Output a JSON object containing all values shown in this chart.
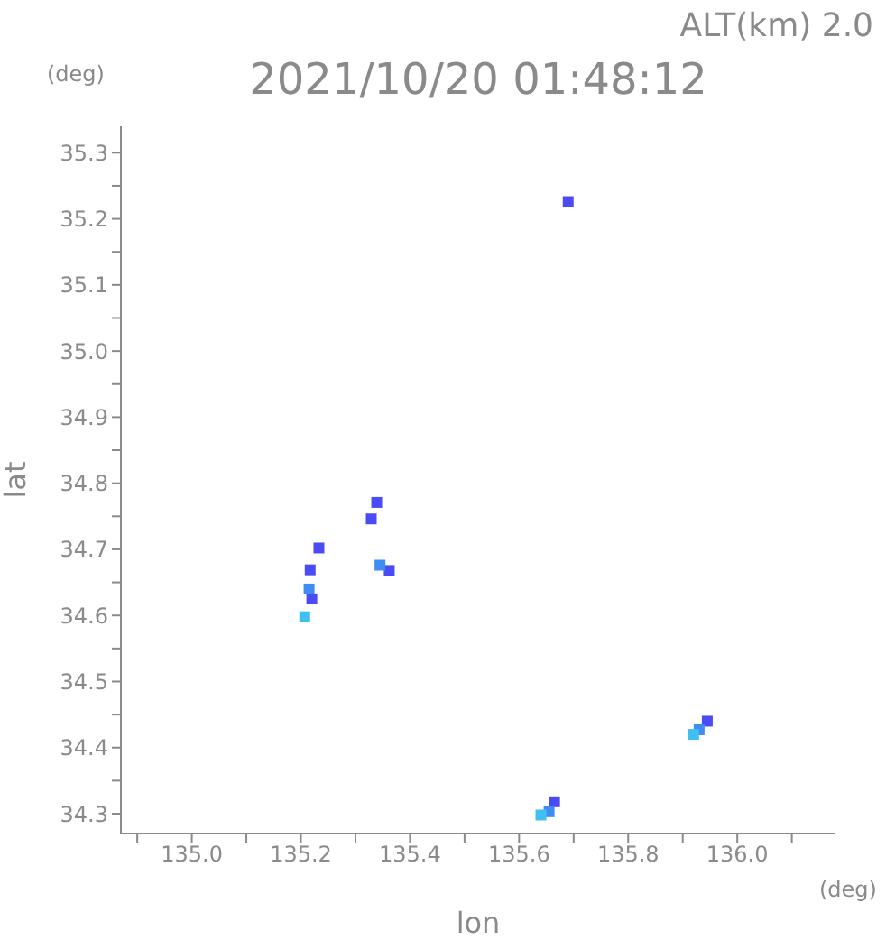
{
  "chart_data": {
    "type": "scatter",
    "title": "2021/10/20 01:48:12",
    "subtitle": "ALT(km) 2.0",
    "xlabel": "lon",
    "ylabel": "lat",
    "annotations": [
      "(deg)",
      "(deg)"
    ],
    "xlim": [
      134.87,
      136.18
    ],
    "xticks": [
      {
        "value": 134.9,
        "label": null
      },
      {
        "value": 135.0,
        "label": "135.0"
      },
      {
        "value": 135.1,
        "label": null
      },
      {
        "value": 135.2,
        "label": "135.2"
      },
      {
        "value": 135.3,
        "label": null
      },
      {
        "value": 135.4,
        "label": "135.4"
      },
      {
        "value": 135.5,
        "label": null
      },
      {
        "value": 135.6,
        "label": "135.6"
      },
      {
        "value": 135.7,
        "label": null
      },
      {
        "value": 135.8,
        "label": "135.8"
      },
      {
        "value": 135.9,
        "label": null
      },
      {
        "value": 136.0,
        "label": "136.0"
      },
      {
        "value": 136.1,
        "label": null
      }
    ],
    "ylim": [
      34.27,
      35.34
    ],
    "yticks": [
      {
        "value": 34.3,
        "label": "34.3"
      },
      {
        "value": 34.35,
        "label": null
      },
      {
        "value": 34.4,
        "label": "34.4"
      },
      {
        "value": 34.45,
        "label": null
      },
      {
        "value": 34.5,
        "label": "34.5"
      },
      {
        "value": 34.55,
        "label": null
      },
      {
        "value": 34.6,
        "label": "34.6"
      },
      {
        "value": 34.65,
        "label": null
      },
      {
        "value": 34.7,
        "label": "34.7"
      },
      {
        "value": 34.75,
        "label": null
      },
      {
        "value": 34.8,
        "label": "34.8"
      },
      {
        "value": 34.85,
        "label": null
      },
      {
        "value": 34.9,
        "label": "34.9"
      },
      {
        "value": 34.95,
        "label": null
      },
      {
        "value": 35.0,
        "label": "35.0"
      },
      {
        "value": 35.05,
        "label": null
      },
      {
        "value": 35.1,
        "label": "35.1"
      },
      {
        "value": 35.15,
        "label": null
      },
      {
        "value": 35.2,
        "label": "35.2"
      },
      {
        "value": 35.25,
        "label": null
      },
      {
        "value": 35.3,
        "label": "35.3"
      }
    ],
    "grid": false,
    "legend": false,
    "marker": "square",
    "series": [
      {
        "color": "#4b4bf5",
        "x": [
          135.69,
          135.362,
          135.217,
          135.22,
          135.233,
          135.339,
          135.329,
          135.945,
          135.665
        ],
        "values": [
          35.226,
          34.668,
          34.669,
          34.625,
          34.702,
          34.771,
          34.746,
          34.44,
          34.318
        ]
      },
      {
        "color": "#3f8cf5",
        "x": [
          135.215,
          135.93,
          135.655,
          135.345
        ],
        "values": [
          34.64,
          34.427,
          34.303,
          34.676
        ]
      },
      {
        "color": "#40c0f0",
        "x": [
          135.207,
          135.92,
          135.64
        ],
        "values": [
          34.598,
          34.42,
          34.298
        ]
      }
    ]
  }
}
